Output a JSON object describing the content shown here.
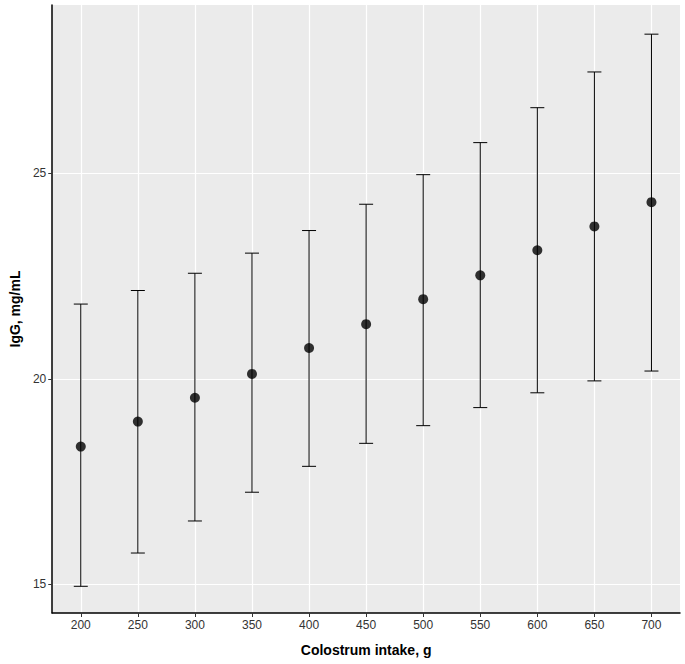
{
  "chart_data": {
    "type": "scatter",
    "x_label": "Colostrum intake, g",
    "y_label": "IgG, mg/mL",
    "x": [
      200,
      250,
      300,
      350,
      400,
      450,
      500,
      550,
      600,
      650,
      700
    ],
    "values": [
      18.35,
      18.96,
      19.54,
      20.12,
      20.75,
      21.33,
      21.94,
      22.52,
      23.13,
      23.71,
      24.3
    ],
    "lower": [
      14.95,
      15.76,
      16.54,
      17.24,
      17.87,
      18.43,
      18.86,
      19.3,
      19.66,
      19.95,
      20.19
    ],
    "upper": [
      21.82,
      22.15,
      22.57,
      23.06,
      23.61,
      24.25,
      24.97,
      25.75,
      26.6,
      27.47,
      28.39
    ],
    "color": "#000000",
    "marker": "circle",
    "xlim": [
      175,
      725
    ],
    "xticks": [
      200,
      250,
      300,
      350,
      400,
      450,
      500,
      550,
      600,
      650,
      700
    ],
    "ylim": [
      14.3,
      29.1
    ],
    "yticks": [
      15,
      20,
      25
    ],
    "grid": true
  }
}
